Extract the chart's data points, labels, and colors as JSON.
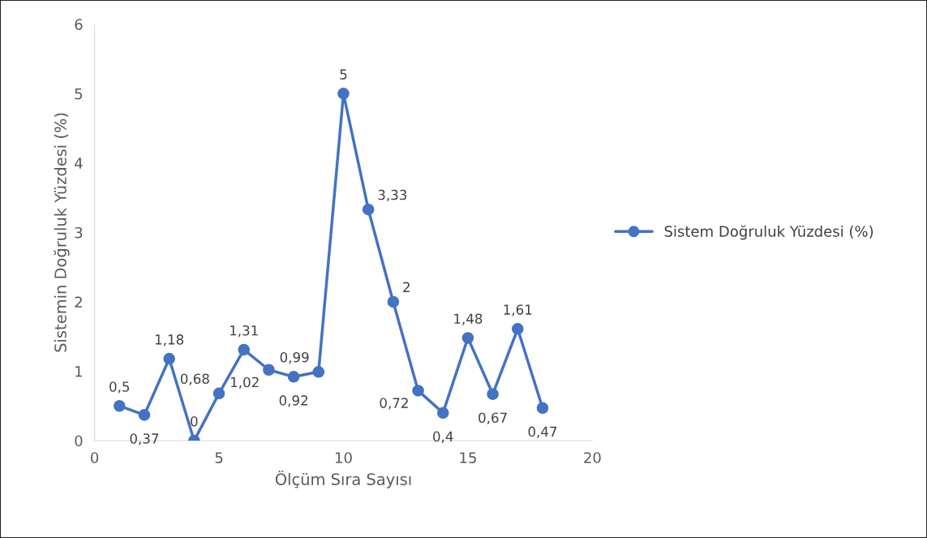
{
  "chart_data": {
    "type": "line",
    "xlabel": "Ölçüm Sıra Sayısı",
    "ylabel": "Sistemin Doğruluk Yüzdesi (%)",
    "x": [
      1,
      2,
      3,
      4,
      5,
      6,
      7,
      8,
      9,
      10,
      11,
      12,
      13,
      14,
      15,
      16,
      17,
      18
    ],
    "series": [
      {
        "name": "Sistem Doğruluk Yüzdesi (%)",
        "color": "#4472c4",
        "values": [
          0.5,
          0.37,
          1.18,
          0,
          0.68,
          1.31,
          1.02,
          0.92,
          0.99,
          5,
          3.33,
          2,
          0.72,
          0.4,
          1.48,
          0.67,
          1.61,
          0.47
        ],
        "value_labels": [
          "0,5",
          "0,37",
          "1,18",
          "0",
          "0,68",
          "1,31",
          "1,02",
          "0,92",
          "0,99",
          "5",
          "3,33",
          "2",
          "0,72",
          "0,4",
          "1,48",
          "0,67",
          "1,61",
          "0,47"
        ]
      }
    ],
    "xlim": [
      0,
      20
    ],
    "xticks": [
      0,
      5,
      10,
      15,
      20
    ],
    "ylim": [
      0,
      6
    ],
    "yticks": [
      0,
      1,
      2,
      3,
      4,
      5,
      6
    ],
    "marker": "circle",
    "line_style": "solid",
    "grid": false,
    "legend": "right"
  }
}
